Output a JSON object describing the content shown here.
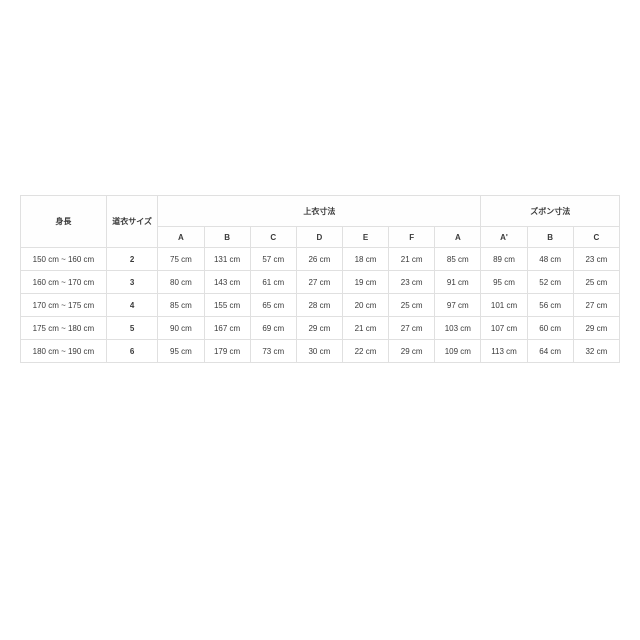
{
  "colors": {
    "border": "#e0e0e0",
    "text": "#3a3a3a",
    "background": "#ffffff"
  },
  "font": {
    "family": "sans-serif",
    "size_pt": 8,
    "header_weight": 700
  },
  "table": {
    "headers": {
      "height": "身長",
      "size": "道衣サイズ",
      "jacket_group": "上衣寸法",
      "pants_group": "ズボン寸法",
      "jacket_cols": [
        "A",
        "B",
        "C",
        "D",
        "E",
        "F",
        "A"
      ],
      "pants_cols": [
        "A'",
        "B",
        "C"
      ]
    },
    "rows": [
      {
        "height": "150 cm ~ 160 cm",
        "size": "2",
        "jacket": [
          "75 cm",
          "131 cm",
          "57 cm",
          "26 cm",
          "18 cm",
          "21 cm",
          "85 cm"
        ],
        "pants": [
          "89 cm",
          "48 cm",
          "23 cm"
        ]
      },
      {
        "height": "160 cm ~ 170 cm",
        "size": "3",
        "jacket": [
          "80 cm",
          "143 cm",
          "61 cm",
          "27 cm",
          "19 cm",
          "23 cm",
          "91 cm"
        ],
        "pants": [
          "95 cm",
          "52 cm",
          "25 cm"
        ]
      },
      {
        "height": "170 cm ~ 175 cm",
        "size": "4",
        "jacket": [
          "85 cm",
          "155 cm",
          "65 cm",
          "28 cm",
          "20 cm",
          "25 cm",
          "97 cm"
        ],
        "pants": [
          "101 cm",
          "56 cm",
          "27 cm"
        ]
      },
      {
        "height": "175 cm ~ 180 cm",
        "size": "5",
        "jacket": [
          "90 cm",
          "167 cm",
          "69 cm",
          "29 cm",
          "21 cm",
          "27 cm",
          "103 cm"
        ],
        "pants": [
          "107 cm",
          "60 cm",
          "29 cm"
        ]
      },
      {
        "height": "180 cm ~ 190 cm",
        "size": "6",
        "jacket": [
          "95 cm",
          "179 cm",
          "73 cm",
          "30 cm",
          "22 cm",
          "29 cm",
          "109 cm"
        ],
        "pants": [
          "113 cm",
          "64 cm",
          "32 cm"
        ]
      }
    ]
  }
}
